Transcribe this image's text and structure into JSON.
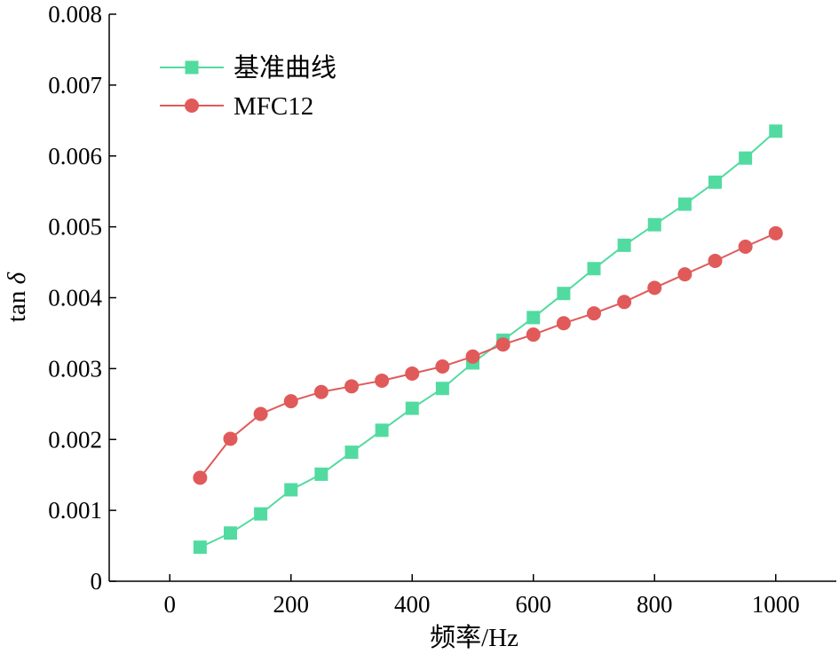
{
  "chart_data": {
    "type": "line",
    "xlabel": "频率/Hz",
    "ylabel_prefix": "tan ",
    "ylabel_symbol": "δ",
    "xlim": [
      -100,
      1100
    ],
    "ylim": [
      0,
      0.008
    ],
    "x_ticks": [
      0,
      200,
      400,
      600,
      800,
      1000
    ],
    "x_tick_labels": [
      "0",
      "200",
      "400",
      "600",
      "800",
      "1000"
    ],
    "y_ticks": [
      0,
      0.001,
      0.002,
      0.003,
      0.004,
      0.005,
      0.006,
      0.007,
      0.008
    ],
    "y_tick_labels": [
      "0",
      "0.001",
      "0.002",
      "0.003",
      "0.004",
      "0.005",
      "0.006",
      "0.007",
      "0.008"
    ],
    "grid": false,
    "legend_position": "top-left",
    "x": [
      50,
      100,
      150,
      200,
      250,
      300,
      350,
      400,
      450,
      500,
      550,
      600,
      650,
      700,
      750,
      800,
      850,
      900,
      950,
      1000
    ],
    "series": [
      {
        "name": "基准曲线",
        "marker": "square",
        "color": "#52dba0",
        "values": [
          0.00048,
          0.00068,
          0.00095,
          0.00129,
          0.00151,
          0.00182,
          0.00213,
          0.00244,
          0.00272,
          0.00308,
          0.0034,
          0.00372,
          0.00406,
          0.00441,
          0.00474,
          0.00503,
          0.00532,
          0.00563,
          0.00597,
          0.00635
        ]
      },
      {
        "name": "MFC12",
        "marker": "circle",
        "color": "#e05a5a",
        "values": [
          0.00146,
          0.00201,
          0.00236,
          0.00254,
          0.00267,
          0.00275,
          0.00283,
          0.00293,
          0.00303,
          0.00317,
          0.00334,
          0.00348,
          0.00364,
          0.00378,
          0.00394,
          0.00414,
          0.00433,
          0.00452,
          0.00472,
          0.00491
        ]
      }
    ]
  }
}
